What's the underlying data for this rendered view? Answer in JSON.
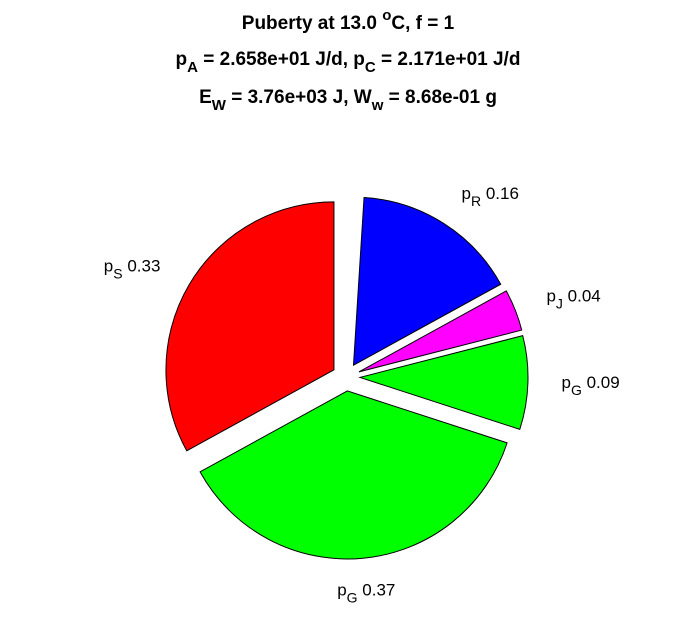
{
  "chart_data": {
    "type": "pie",
    "title_lines": [
      [
        {
          "text": "Puberty at 13.0 "
        },
        {
          "sup": "o"
        },
        {
          "text": "C, f = 1"
        }
      ],
      [
        {
          "text": "p"
        },
        {
          "sub": "A"
        },
        {
          "text": " = 2.658e+01 J/d,  p"
        },
        {
          "sub": "C"
        },
        {
          "text": " = 2.171e+01 J/d"
        }
      ],
      [
        {
          "text": "E"
        },
        {
          "sub": "W"
        },
        {
          "text": " = 3.76e+03 J, W"
        },
        {
          "sub": "w"
        },
        {
          "text": " = 8.68e-01 g"
        }
      ]
    ],
    "labels": [
      {
        "main": "p",
        "sub": "S"
      },
      {
        "main": "p",
        "sub": "G"
      },
      {
        "main": "p",
        "sub": "G"
      },
      {
        "main": "p",
        "sub": "J"
      },
      {
        "main": "p",
        "sub": "R"
      }
    ],
    "values": [
      0.33,
      0.37,
      0.09,
      0.04,
      0.16
    ],
    "colors": [
      "#ff0000",
      "#00ff00",
      "#00ff00",
      "#ff00ff",
      "#0000ff"
    ],
    "exploded": true
  }
}
